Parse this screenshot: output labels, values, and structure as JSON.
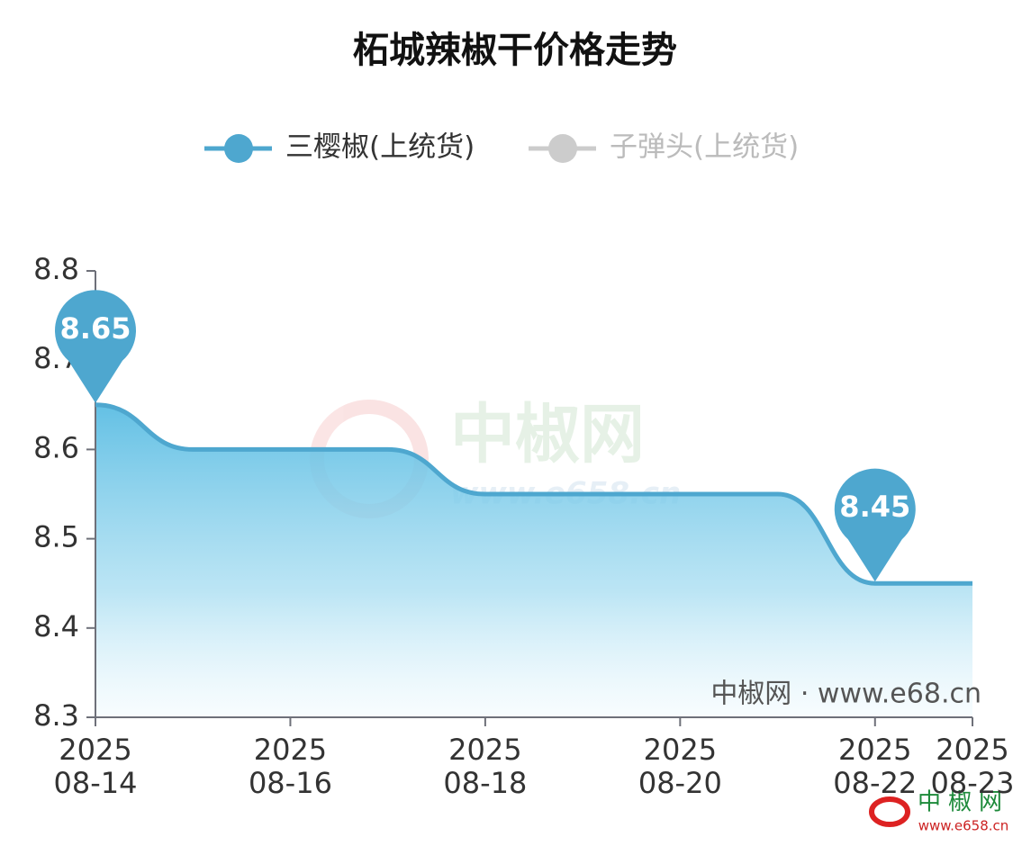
{
  "chart_data": {
    "type": "line",
    "title": "柘城辣椒干价格走势",
    "categories": [
      "2025\n08-14",
      null,
      "2025\n08-16",
      null,
      "2025\n08-18",
      null,
      "2025\n08-20",
      null,
      "2025\n08-22",
      "2025\n08-23"
    ],
    "series": [
      {
        "name": "三樱椒(上统货)",
        "color": "#4ea7cf",
        "values": [
          8.65,
          8.6,
          8.6,
          8.6,
          8.55,
          8.55,
          8.55,
          8.55,
          8.45,
          8.45
        ],
        "mark_points": [
          "max",
          "min"
        ],
        "visible": true
      },
      {
        "name": "子弹头(上统货)",
        "color": "#cccccc",
        "values": [
          null,
          null,
          null,
          null,
          null,
          null,
          null,
          null,
          null,
          null
        ],
        "visible": false
      }
    ],
    "ylim": [
      8.3,
      8.8
    ],
    "yticks": [
      8.3,
      8.4,
      8.5,
      8.6,
      8.7,
      8.8
    ],
    "smooth": true,
    "area": true,
    "watermark": {
      "brand": "中椒网",
      "url": "www.e658.cn"
    },
    "source_note": "中椒网 · www.e68.cn",
    "corner_logo": {
      "brand": "中椒网",
      "url": "www.e658.cn"
    }
  }
}
